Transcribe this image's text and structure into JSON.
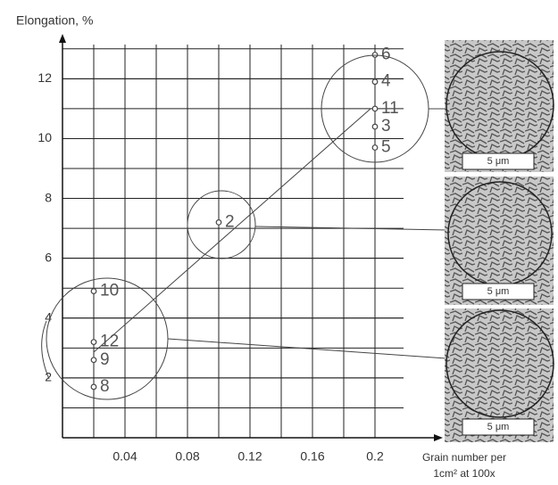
{
  "chart_data": {
    "type": "scatter",
    "y_label": "Elongation, %",
    "x_label": [
      "Grain number per",
      "1cm² at 100x"
    ],
    "x": [
      0.2,
      0.2,
      0.2,
      0.2,
      0.2,
      0.1,
      0.02,
      0.02,
      0.02,
      0.02
    ],
    "y": [
      12.8,
      11.9,
      11,
      10.4,
      9.7,
      7.2,
      4.9,
      3.2,
      2.6,
      1.7
    ],
    "labels": [
      "6",
      "4",
      "11",
      "3",
      "5",
      "2",
      "10",
      "12",
      "9",
      "8"
    ],
    "color": "#444",
    "xlim": [
      0,
      0.24
    ],
    "ylim": [
      0,
      13.5
    ],
    "xticks": [
      0.04,
      0.08,
      0.12,
      0.16,
      0.2
    ],
    "yticks": [
      2,
      4,
      6,
      8,
      10,
      12
    ],
    "grid": true,
    "scale_bars": [
      "5 μm",
      "5 μm",
      "5 μm"
    ]
  }
}
